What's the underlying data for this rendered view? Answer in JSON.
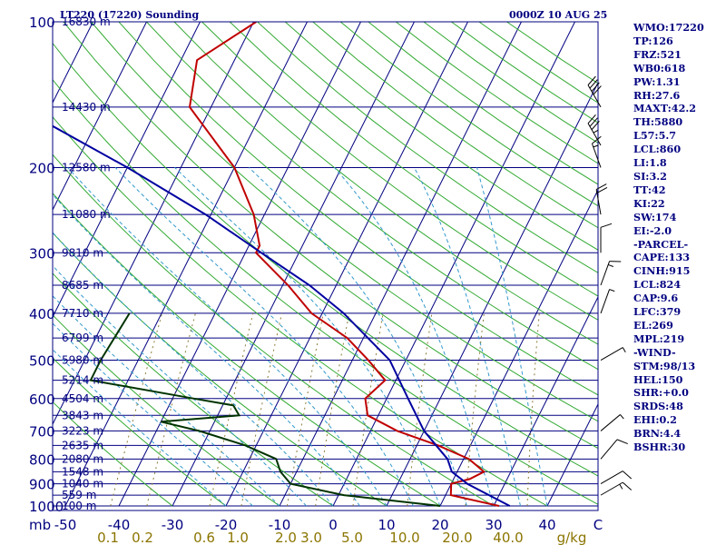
{
  "header": {
    "station": "LT220 (17220) Sounding",
    "time": "0000Z 10 AUG 25"
  },
  "stats": [
    "WMO:17220",
    "TP:126",
    "FRZ:521",
    "WB0:618",
    "PW:1.31",
    "RH:27.6",
    "MAXT:42.2",
    "TH:5880",
    "L57:5.7",
    "LCL:860",
    "LI:1.8",
    "SI:3.2",
    "TT:42",
    "KI:22",
    "SW:174",
    "EI:-2.0",
    "-PARCEL-",
    "CAPE:133",
    "CINH:915",
    "LCL:824",
    "CAP:9.6",
    "LFC:379",
    "EL:269",
    "MPL:219",
    "-WIND-",
    "STM:98/13",
    "HEL:150",
    "SHR:+0.0",
    "SRDS:48",
    "EHI:0.2",
    "BRN:4.4",
    "BSHR:30"
  ],
  "chart_data": {
    "type": "line",
    "title": "LT220 (17220) Sounding",
    "xlabel": "°C",
    "ylabel": "mb",
    "xlim": [
      -50,
      50
    ],
    "ylim": [
      1000,
      100
    ],
    "y_scale": "log",
    "grid": true,
    "pressure_ticks": [
      {
        "p": 100,
        "label": "100"
      },
      {
        "p": 200,
        "label": "200"
      },
      {
        "p": 300,
        "label": "300"
      },
      {
        "p": 400,
        "label": "400"
      },
      {
        "p": 500,
        "label": "500"
      },
      {
        "p": 600,
        "label": "600"
      },
      {
        "p": 700,
        "label": "700"
      },
      {
        "p": 800,
        "label": "800"
      },
      {
        "p": 900,
        "label": "900"
      },
      {
        "p": 1000,
        "label": "1000"
      }
    ],
    "temp_ticks": [
      {
        "t": -50,
        "label": "-50"
      },
      {
        "t": -40,
        "label": "-40"
      },
      {
        "t": -30,
        "label": "-30"
      },
      {
        "t": -20,
        "label": "-20"
      },
      {
        "t": -10,
        "label": "-10"
      },
      {
        "t": 0,
        "label": "0"
      },
      {
        "t": 10,
        "label": "10"
      },
      {
        "t": 20,
        "label": "20"
      },
      {
        "t": 30,
        "label": "30"
      },
      {
        "t": 40,
        "label": "40"
      }
    ],
    "x_unit_label": "C",
    "y_unit_label": "mb",
    "height_levels": [
      {
        "p": 100,
        "label": "16830 m"
      },
      {
        "p": 150,
        "label": "14430 m"
      },
      {
        "p": 200,
        "label": "12580 m"
      },
      {
        "p": 250,
        "label": "11080 m"
      },
      {
        "p": 300,
        "label": "9810 m"
      },
      {
        "p": 350,
        "label": "8685 m"
      },
      {
        "p": 400,
        "label": "7710 m"
      },
      {
        "p": 450,
        "label": "6799 m"
      },
      {
        "p": 500,
        "label": "5980 m"
      },
      {
        "p": 550,
        "label": "5214 m"
      },
      {
        "p": 600,
        "label": "4504 m"
      },
      {
        "p": 650,
        "label": "3843 m"
      },
      {
        "p": 700,
        "label": "3223 m"
      },
      {
        "p": 750,
        "label": "2635 m"
      },
      {
        "p": 800,
        "label": "2080 m"
      },
      {
        "p": 850,
        "label": "1548 m"
      },
      {
        "p": 900,
        "label": "1040 m"
      },
      {
        "p": 950,
        "label": "559 m"
      },
      {
        "p": 1000,
        "label": "100 m"
      }
    ],
    "mixing_ratio_labels": [
      "0.1",
      "0.2",
      "0.6",
      "1.0",
      "2.0",
      "3.0",
      "5.0",
      "10.0",
      "20.0",
      "40.0"
    ],
    "mixing_ratio_unit": "g/kg",
    "series": [
      {
        "role": "temperature",
        "color": "#c00000",
        "points": [
          [
            100,
            -59.5
          ],
          [
            120,
            -67
          ],
          [
            150,
            -64
          ],
          [
            200,
            -50
          ],
          [
            250,
            -42
          ],
          [
            290,
            -38
          ],
          [
            300,
            -38
          ],
          [
            350,
            -29
          ],
          [
            400,
            -22
          ],
          [
            450,
            -13
          ],
          [
            500,
            -7
          ],
          [
            550,
            -2
          ],
          [
            600,
            -4
          ],
          [
            650,
            -2
          ],
          [
            700,
            5
          ],
          [
            750,
            14
          ],
          [
            800,
            21
          ],
          [
            850,
            25
          ],
          [
            880,
            23
          ],
          [
            900,
            20
          ],
          [
            950,
            21
          ],
          [
            1000,
            31
          ]
        ]
      },
      {
        "role": "dewpoint",
        "color": "#003300",
        "points": [
          [
            400,
            -56
          ],
          [
            500,
            -57
          ],
          [
            550,
            -57
          ],
          [
            600,
            -36
          ],
          [
            620,
            -28
          ],
          [
            650,
            -26
          ],
          [
            670,
            -40
          ],
          [
            700,
            -32
          ],
          [
            750,
            -22
          ],
          [
            800,
            -15
          ],
          [
            850,
            -13
          ],
          [
            900,
            -10
          ],
          [
            950,
            1
          ],
          [
            1000,
            20
          ]
        ]
      },
      {
        "role": "parcel",
        "color": "#0000a0",
        "points": [
          [
            120,
            -98
          ],
          [
            150,
            -96
          ],
          [
            200,
            -70
          ],
          [
            250,
            -51
          ],
          [
            300,
            -37
          ],
          [
            350,
            -25
          ],
          [
            400,
            -16
          ],
          [
            500,
            -3
          ],
          [
            600,
            4
          ],
          [
            700,
            10
          ],
          [
            800,
            17
          ],
          [
            850,
            19
          ],
          [
            900,
            23
          ],
          [
            1000,
            33
          ]
        ]
      }
    ],
    "wind_barbs": [
      {
        "p": 150,
        "dir": 330,
        "spd": 40
      },
      {
        "p": 180,
        "dir": 330,
        "spd": 35
      },
      {
        "p": 200,
        "dir": 340,
        "spd": 15
      },
      {
        "p": 250,
        "dir": 350,
        "spd": 20
      },
      {
        "p": 300,
        "dir": 360,
        "spd": 10
      },
      {
        "p": 350,
        "dir": 20,
        "spd": 15
      },
      {
        "p": 400,
        "dir": 20,
        "spd": 5
      },
      {
        "p": 500,
        "dir": 60,
        "spd": 5
      },
      {
        "p": 700,
        "dir": 50,
        "spd": 5
      },
      {
        "p": 800,
        "dir": 40,
        "spd": 10
      },
      {
        "p": 900,
        "dir": 60,
        "spd": 10
      },
      {
        "p": 950,
        "dir": 60,
        "spd": 15
      }
    ]
  }
}
